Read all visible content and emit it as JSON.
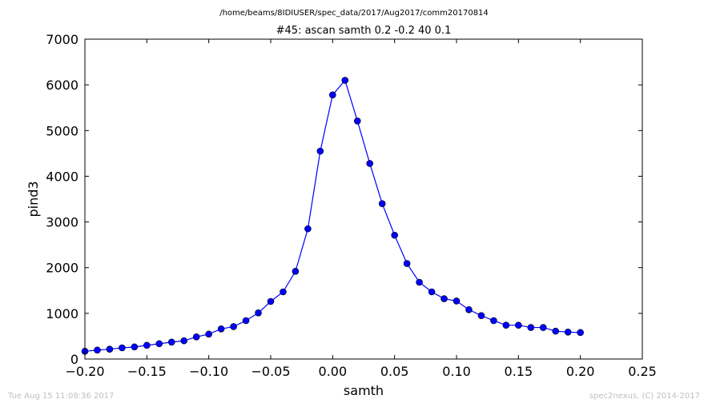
{
  "suptitle": "/home/beams/8IDIUSER/spec_data/2017/Aug2017/comm20170814",
  "footer_left": "Tue Aug 15 11:08:36 2017",
  "footer_right": "spec2nexus, (C) 2014-2017",
  "chart_data": {
    "type": "line",
    "title": "#45: ascan  samth 0.2 -0.2  40 0.1",
    "xlabel": "samth",
    "ylabel": "pind3",
    "xlim": [
      -0.2,
      0.25
    ],
    "ylim": [
      0,
      7000
    ],
    "xticks": [
      -0.2,
      -0.15,
      -0.1,
      -0.05,
      0.0,
      0.05,
      0.1,
      0.15,
      0.2,
      0.25
    ],
    "xtick_labels": [
      "−0.20",
      "−0.15",
      "−0.10",
      "−0.05",
      "0.00",
      "0.05",
      "0.10",
      "0.15",
      "0.20",
      "0.25"
    ],
    "yticks": [
      0,
      1000,
      2000,
      3000,
      4000,
      5000,
      6000,
      7000
    ],
    "ytick_labels": [
      "0",
      "1000",
      "2000",
      "3000",
      "4000",
      "5000",
      "6000",
      "7000"
    ],
    "grid": false,
    "color": "#0000ff",
    "marker": "circle",
    "x": [
      -0.2,
      -0.19,
      -0.18,
      -0.17,
      -0.16,
      -0.15,
      -0.14,
      -0.13,
      -0.12,
      -0.11,
      -0.1,
      -0.09,
      -0.08,
      -0.07,
      -0.06,
      -0.05,
      -0.04,
      -0.03,
      -0.02,
      -0.01,
      0.0,
      0.01,
      0.02,
      0.03,
      0.04,
      0.05,
      0.06,
      0.07,
      0.08,
      0.09,
      0.1,
      0.11,
      0.12,
      0.13,
      0.14,
      0.15,
      0.16,
      0.17,
      0.18,
      0.19,
      0.2
    ],
    "y": [
      170,
      195,
      215,
      245,
      265,
      300,
      335,
      370,
      400,
      485,
      545,
      660,
      710,
      840,
      1010,
      1260,
      1470,
      1920,
      2850,
      4550,
      5780,
      6100,
      5210,
      4280,
      3400,
      2710,
      2090,
      1680,
      1470,
      1320,
      1270,
      1080,
      950,
      840,
      740,
      740,
      690,
      690,
      610,
      590,
      580
    ]
  }
}
